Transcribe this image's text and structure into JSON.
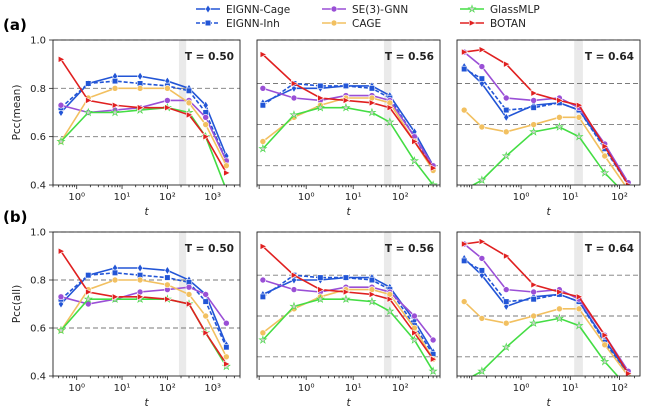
{
  "legend": [
    {
      "name": "EIGNN-Cage",
      "color": "#2255d6",
      "marker": "diamond",
      "dash": "solid"
    },
    {
      "name": "EIGNN-Inh",
      "color": "#2255d6",
      "marker": "square",
      "dash": "dashed"
    },
    {
      "name": "SE(3)-GNN",
      "color": "#9a4fd6",
      "marker": "circle",
      "dash": "solid"
    },
    {
      "name": "CAGE",
      "color": "#f2c060",
      "marker": "circle",
      "dash": "solid"
    },
    {
      "name": "GlassMLP",
      "color": "#44dd44",
      "marker": "star",
      "dash": "solid"
    },
    {
      "name": "BOTAN",
      "color": "#e02020",
      "marker": "triangle",
      "dash": "solid"
    }
  ],
  "row_labels": [
    "(a)",
    "(b)"
  ],
  "y_axis_labels": [
    "Pcc(mean)",
    "Pcc(all)"
  ],
  "x_axis_label": "t",
  "y_ticks": [
    "0.4",
    "0.6",
    "0.8",
    "1.0"
  ],
  "chart_data": [
    {
      "type": "line",
      "row": 0,
      "col": 0,
      "title": "T = 0.50",
      "xlabel": "t",
      "ylabel": "Pcc(mean)",
      "xscale": "log",
      "xlim": [
        0.3,
        4000
      ],
      "ylim": [
        0.4,
        1.0
      ],
      "x_ticks": [
        {
          "value": 1,
          "label": "10⁰"
        },
        {
          "value": 10,
          "label": "10¹"
        },
        {
          "value": 100,
          "label": "10²"
        },
        {
          "value": 1000,
          "label": "10³"
        }
      ],
      "shaded_band": [
        180,
        260
      ],
      "hlines": [
        0.6,
        0.8,
        1.0
      ],
      "series": [
        {
          "name": "EIGNN-Cage",
          "x": [
            0.45,
            1.8,
            7,
            25,
            100,
            300,
            700,
            2000
          ],
          "y": [
            0.7,
            0.82,
            0.85,
            0.85,
            0.83,
            0.8,
            0.73,
            0.52
          ]
        },
        {
          "name": "EIGNN-Inh",
          "x": [
            0.45,
            1.8,
            7,
            25,
            100,
            300,
            700,
            2000
          ],
          "y": [
            0.72,
            0.82,
            0.83,
            0.82,
            0.81,
            0.79,
            0.7,
            0.5
          ]
        },
        {
          "name": "SE(3)-GNN",
          "x": [
            0.45,
            1.8,
            7,
            25,
            100,
            300,
            700,
            2000
          ],
          "y": [
            0.73,
            0.7,
            0.71,
            0.72,
            0.75,
            0.75,
            0.68,
            0.5
          ]
        },
        {
          "name": "CAGE",
          "x": [
            0.45,
            1.8,
            7,
            25,
            100,
            300,
            700,
            2000
          ],
          "y": [
            0.58,
            0.76,
            0.8,
            0.8,
            0.8,
            0.74,
            0.65,
            0.48
          ]
        },
        {
          "name": "GlassMLP",
          "x": [
            0.45,
            1.8,
            7,
            25,
            100,
            300,
            700,
            2000
          ],
          "y": [
            0.58,
            0.7,
            0.7,
            0.71,
            0.72,
            0.7,
            0.6,
            0.38
          ]
        },
        {
          "name": "BOTAN",
          "x": [
            0.45,
            1.8,
            7,
            25,
            100,
            300,
            700,
            2000
          ],
          "y": [
            0.92,
            0.75,
            0.73,
            0.72,
            0.72,
            0.69,
            0.6,
            0.45
          ]
        }
      ]
    },
    {
      "type": "line",
      "row": 0,
      "col": 1,
      "title": "T = 0.56",
      "xlabel": "t",
      "ylabel": "",
      "xscale": "log",
      "xlim": [
        0.09,
        700
      ],
      "ylim": [
        0.4,
        1.0
      ],
      "x_ticks": [
        {
          "value": 1,
          "label": "10⁰"
        },
        {
          "value": 10,
          "label": "10¹"
        },
        {
          "value": 100,
          "label": "10²"
        }
      ],
      "shaded_band": [
        45,
        65
      ],
      "hlines": [
        0.48,
        0.65,
        0.82,
        1.0
      ],
      "series": [
        {
          "name": "EIGNN-Cage",
          "x": [
            0.12,
            0.55,
            2,
            7,
            25,
            60,
            200,
            500
          ],
          "y": [
            0.74,
            0.8,
            0.8,
            0.81,
            0.81,
            0.77,
            0.62,
            0.48
          ]
        },
        {
          "name": "EIGNN-Inh",
          "x": [
            0.12,
            0.55,
            2,
            7,
            25,
            60,
            200,
            500
          ],
          "y": [
            0.73,
            0.82,
            0.81,
            0.81,
            0.8,
            0.76,
            0.6,
            0.47
          ]
        },
        {
          "name": "SE(3)-GNN",
          "x": [
            0.12,
            0.55,
            2,
            7,
            25,
            60,
            200,
            500
          ],
          "y": [
            0.8,
            0.76,
            0.75,
            0.77,
            0.77,
            0.75,
            0.6,
            0.48
          ]
        },
        {
          "name": "CAGE",
          "x": [
            0.12,
            0.55,
            2,
            7,
            25,
            60,
            200,
            500
          ],
          "y": [
            0.58,
            0.68,
            0.73,
            0.76,
            0.76,
            0.74,
            0.58,
            0.46
          ]
        },
        {
          "name": "GlassMLP",
          "x": [
            0.12,
            0.55,
            2,
            7,
            25,
            60,
            200,
            500
          ],
          "y": [
            0.55,
            0.69,
            0.72,
            0.72,
            0.7,
            0.66,
            0.5,
            0.4
          ]
        },
        {
          "name": "BOTAN",
          "x": [
            0.12,
            0.55,
            2,
            7,
            25,
            60,
            200,
            500
          ],
          "y": [
            0.94,
            0.82,
            0.76,
            0.75,
            0.74,
            0.72,
            0.58,
            0.47
          ]
        }
      ]
    },
    {
      "type": "line",
      "row": 0,
      "col": 2,
      "title": "T = 0.64",
      "xlabel": "t",
      "ylabel": "",
      "xscale": "log",
      "xlim": [
        0.05,
        260
      ],
      "ylim": [
        0.4,
        1.0
      ],
      "x_ticks": [
        {
          "value": 1,
          "label": "10⁰"
        },
        {
          "value": 10,
          "label": "10¹"
        },
        {
          "value": 100,
          "label": "10²"
        }
      ],
      "shaded_band": [
        12,
        18
      ],
      "hlines": [
        0.48,
        0.65,
        0.82,
        1.0
      ],
      "series": [
        {
          "name": "EIGNN-Cage",
          "x": [
            0.07,
            0.16,
            0.5,
            1.8,
            6,
            15,
            50,
            150
          ],
          "y": [
            0.89,
            0.82,
            0.68,
            0.73,
            0.74,
            0.71,
            0.56,
            0.4
          ]
        },
        {
          "name": "EIGNN-Inh",
          "x": [
            0.07,
            0.16,
            0.5,
            1.8,
            6,
            15,
            50,
            150
          ],
          "y": [
            0.88,
            0.84,
            0.71,
            0.72,
            0.74,
            0.71,
            0.55,
            0.4
          ]
        },
        {
          "name": "SE(3)-GNN",
          "x": [
            0.07,
            0.16,
            0.5,
            1.8,
            6,
            15,
            50,
            150
          ],
          "y": [
            0.95,
            0.89,
            0.76,
            0.75,
            0.76,
            0.72,
            0.57,
            0.41
          ]
        },
        {
          "name": "CAGE",
          "x": [
            0.07,
            0.16,
            0.5,
            1.8,
            6,
            15,
            50,
            150
          ],
          "y": [
            0.71,
            0.64,
            0.62,
            0.65,
            0.68,
            0.68,
            0.52,
            0.38
          ]
        },
        {
          "name": "GlassMLP",
          "x": [
            0.07,
            0.16,
            0.5,
            1.8,
            6,
            15,
            50,
            150
          ],
          "y": [
            0.38,
            0.42,
            0.52,
            0.62,
            0.64,
            0.6,
            0.45,
            0.35
          ]
        },
        {
          "name": "BOTAN",
          "x": [
            0.07,
            0.16,
            0.5,
            1.8,
            6,
            15,
            50,
            150
          ],
          "y": [
            0.95,
            0.96,
            0.9,
            0.78,
            0.75,
            0.73,
            0.56,
            0.4
          ]
        }
      ]
    },
    {
      "type": "line",
      "row": 1,
      "col": 0,
      "title": "T = 0.50",
      "xlabel": "t",
      "ylabel": "Pcc(all)",
      "xscale": "log",
      "xlim": [
        0.3,
        4000
      ],
      "ylim": [
        0.4,
        1.0
      ],
      "x_ticks": [
        {
          "value": 1,
          "label": "10⁰"
        },
        {
          "value": 10,
          "label": "10¹"
        },
        {
          "value": 100,
          "label": "10²"
        },
        {
          "value": 1000,
          "label": "10³"
        }
      ],
      "shaded_band": [
        180,
        260
      ],
      "hlines": [
        0.6,
        0.8,
        1.0
      ],
      "series": [
        {
          "name": "EIGNN-Cage",
          "x": [
            0.45,
            1.8,
            7,
            25,
            100,
            300,
            700,
            2000
          ],
          "y": [
            0.7,
            0.82,
            0.85,
            0.85,
            0.84,
            0.8,
            0.74,
            0.53
          ]
        },
        {
          "name": "EIGNN-Inh",
          "x": [
            0.45,
            1.8,
            7,
            25,
            100,
            300,
            700,
            2000
          ],
          "y": [
            0.72,
            0.82,
            0.83,
            0.82,
            0.81,
            0.79,
            0.71,
            0.52
          ]
        },
        {
          "name": "SE(3)-GNN",
          "x": [
            0.45,
            1.8,
            7,
            25,
            100,
            300,
            700,
            2000
          ],
          "y": [
            0.73,
            0.7,
            0.72,
            0.75,
            0.76,
            0.77,
            0.74,
            0.62
          ]
        },
        {
          "name": "CAGE",
          "x": [
            0.45,
            1.8,
            7,
            25,
            100,
            300,
            700,
            2000
          ],
          "y": [
            0.59,
            0.76,
            0.8,
            0.8,
            0.78,
            0.74,
            0.65,
            0.48
          ]
        },
        {
          "name": "GlassMLP",
          "x": [
            0.45,
            1.8,
            7,
            25,
            100,
            300,
            700,
            2000
          ],
          "y": [
            0.59,
            0.72,
            0.72,
            0.72,
            0.72,
            0.7,
            0.58,
            0.44
          ]
        },
        {
          "name": "BOTAN",
          "x": [
            0.45,
            1.8,
            7,
            25,
            100,
            300,
            700,
            2000
          ],
          "y": [
            0.92,
            0.75,
            0.73,
            0.73,
            0.72,
            0.7,
            0.58,
            0.45
          ]
        }
      ]
    },
    {
      "type": "line",
      "row": 1,
      "col": 1,
      "title": "T = 0.56",
      "xlabel": "t",
      "ylabel": "",
      "xscale": "log",
      "xlim": [
        0.09,
        700
      ],
      "ylim": [
        0.4,
        1.0
      ],
      "x_ticks": [
        {
          "value": 1,
          "label": "10⁰"
        },
        {
          "value": 10,
          "label": "10¹"
        },
        {
          "value": 100,
          "label": "10²"
        }
      ],
      "shaded_band": [
        45,
        65
      ],
      "hlines": [
        0.48,
        0.65,
        0.82,
        1.0
      ],
      "series": [
        {
          "name": "EIGNN-Cage",
          "x": [
            0.12,
            0.55,
            2,
            7,
            25,
            60,
            200,
            500
          ],
          "y": [
            0.74,
            0.8,
            0.8,
            0.81,
            0.81,
            0.77,
            0.63,
            0.5
          ]
        },
        {
          "name": "EIGNN-Inh",
          "x": [
            0.12,
            0.55,
            2,
            7,
            25,
            60,
            200,
            500
          ],
          "y": [
            0.73,
            0.82,
            0.81,
            0.81,
            0.8,
            0.76,
            0.61,
            0.49
          ]
        },
        {
          "name": "SE(3)-GNN",
          "x": [
            0.12,
            0.55,
            2,
            7,
            25,
            60,
            200,
            500
          ],
          "y": [
            0.8,
            0.76,
            0.75,
            0.77,
            0.77,
            0.75,
            0.65,
            0.55
          ]
        },
        {
          "name": "CAGE",
          "x": [
            0.12,
            0.55,
            2,
            7,
            25,
            60,
            200,
            500
          ],
          "y": [
            0.58,
            0.68,
            0.73,
            0.76,
            0.76,
            0.74,
            0.6,
            0.47
          ]
        },
        {
          "name": "GlassMLP",
          "x": [
            0.12,
            0.55,
            2,
            7,
            25,
            60,
            200,
            500
          ],
          "y": [
            0.55,
            0.69,
            0.72,
            0.72,
            0.71,
            0.67,
            0.55,
            0.42
          ]
        },
        {
          "name": "BOTAN",
          "x": [
            0.12,
            0.55,
            2,
            7,
            25,
            60,
            200,
            500
          ],
          "y": [
            0.94,
            0.82,
            0.76,
            0.75,
            0.74,
            0.72,
            0.58,
            0.47
          ]
        }
      ]
    },
    {
      "type": "line",
      "row": 1,
      "col": 2,
      "title": "T = 0.64",
      "xlabel": "t",
      "ylabel": "",
      "xscale": "log",
      "xlim": [
        0.05,
        260
      ],
      "ylim": [
        0.4,
        1.0
      ],
      "x_ticks": [
        {
          "value": 1,
          "label": "10⁰"
        },
        {
          "value": 10,
          "label": "10¹"
        },
        {
          "value": 100,
          "label": "10²"
        }
      ],
      "shaded_band": [
        12,
        18
      ],
      "hlines": [
        0.48,
        0.65,
        0.82,
        1.0
      ],
      "series": [
        {
          "name": "EIGNN-Cage",
          "x": [
            0.07,
            0.16,
            0.5,
            1.8,
            6,
            15,
            50,
            150
          ],
          "y": [
            0.89,
            0.82,
            0.69,
            0.73,
            0.74,
            0.71,
            0.55,
            0.41
          ]
        },
        {
          "name": "EIGNN-Inh",
          "x": [
            0.07,
            0.16,
            0.5,
            1.8,
            6,
            15,
            50,
            150
          ],
          "y": [
            0.88,
            0.84,
            0.71,
            0.72,
            0.74,
            0.71,
            0.54,
            0.4
          ]
        },
        {
          "name": "SE(3)-GNN",
          "x": [
            0.07,
            0.16,
            0.5,
            1.8,
            6,
            15,
            50,
            150
          ],
          "y": [
            0.95,
            0.89,
            0.76,
            0.75,
            0.76,
            0.72,
            0.57,
            0.42
          ]
        },
        {
          "name": "CAGE",
          "x": [
            0.07,
            0.16,
            0.5,
            1.8,
            6,
            15,
            50,
            150
          ],
          "y": [
            0.71,
            0.64,
            0.62,
            0.65,
            0.68,
            0.68,
            0.53,
            0.4
          ]
        },
        {
          "name": "GlassMLP",
          "x": [
            0.07,
            0.16,
            0.5,
            1.8,
            6,
            15,
            50,
            150
          ],
          "y": [
            0.38,
            0.42,
            0.52,
            0.62,
            0.64,
            0.61,
            0.46,
            0.35
          ]
        },
        {
          "name": "BOTAN",
          "x": [
            0.07,
            0.16,
            0.5,
            1.8,
            6,
            15,
            50,
            150
          ],
          "y": [
            0.95,
            0.96,
            0.9,
            0.78,
            0.75,
            0.73,
            0.57,
            0.41
          ]
        }
      ]
    }
  ]
}
